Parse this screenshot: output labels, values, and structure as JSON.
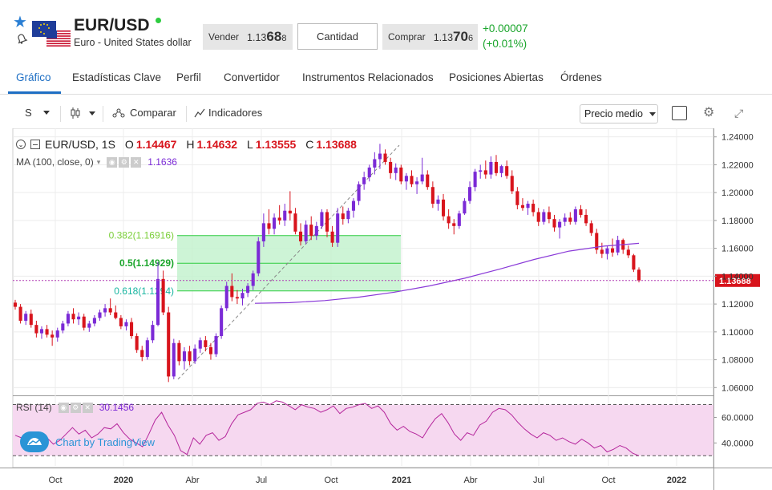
{
  "instrument": {
    "symbol": "EUR/USD",
    "description": "Euro - United States dollar"
  },
  "quote": {
    "sell_label": "Vender",
    "sell_prefix": "1.13",
    "sell_big": "68",
    "sell_small": "8",
    "quantity_label": "Cantidad",
    "buy_label": "Comprar",
    "buy_prefix": "1.13",
    "buy_big": "70",
    "buy_small": "6",
    "change_abs": "+0.00007",
    "change_pct": "(+0.01%)"
  },
  "tabs": [
    {
      "label": "Gráfico",
      "active": true
    },
    {
      "label": "Estadísticas Clave"
    },
    {
      "label": "Perfil"
    },
    {
      "label": "Convertidor"
    },
    {
      "label": "Instrumentos Relacionados"
    },
    {
      "label": "Posiciones Abiertas"
    },
    {
      "label": "Órdenes"
    }
  ],
  "toolbar": {
    "interval": "S",
    "compare": "Comparar",
    "indicators": "Indicadores",
    "price_type": "Precio medio"
  },
  "legend": {
    "symbol": "EUR/USD, 1S",
    "o_label": "O",
    "o_value": "1.14467",
    "h_label": "H",
    "h_value": "1.14632",
    "l_label": "L",
    "l_value": "1.13555",
    "c_label": "C",
    "c_value": "1.13688",
    "ma_label": "MA (100, close, 0)",
    "ma_value": "1.1636",
    "rsi_label": "RSI (14)",
    "rsi_value": "30.1456",
    "branding": "Chart by TradingView"
  },
  "colors": {
    "up": "#7b2ad6",
    "down": "#d8141c",
    "ma": "#8a3ad8",
    "rsi": "#b5269c",
    "fib_fill": "#c4f2cf",
    "fib_line": "#2ecc40",
    "rsi_fill": "#f6d8f0",
    "accent": "#1e6fc4",
    "positive": "#1aa52b"
  },
  "chart_data": {
    "type": "candlestick",
    "price_axis_ticks": [
      "1.24000",
      "1.22000",
      "1.20000",
      "1.18000",
      "1.16000",
      "1.14000",
      "1.12000",
      "1.10000",
      "1.08000",
      "1.06000"
    ],
    "last_price_label": "1.13688",
    "last_price": 1.13688,
    "time_axis_labels": [
      "Oct",
      "2020",
      "Abr",
      "Jul",
      "Oct",
      "2021",
      "Abr",
      "Jul",
      "Oct",
      "2022"
    ],
    "fibonacci": [
      {
        "label": "0.382(1.16916)",
        "price": 1.16916
      },
      {
        "label": "0.5(1.14929)",
        "price": 1.14929
      },
      {
        "label": "0.618(1.1294)",
        "price": 1.1294
      }
    ],
    "rsi_axis_ticks": [
      "60.0000",
      "40.0000"
    ],
    "rsi_bands": [
      70,
      30
    ],
    "candles": [
      [
        1.121,
        1.123,
        1.116,
        1.118
      ],
      [
        1.118,
        1.12,
        1.106,
        1.108
      ],
      [
        1.108,
        1.115,
        1.105,
        1.113
      ],
      [
        1.113,
        1.116,
        1.103,
        1.105
      ],
      [
        1.105,
        1.108,
        1.096,
        1.099
      ],
      [
        1.099,
        1.104,
        1.095,
        1.102
      ],
      [
        1.102,
        1.105,
        1.096,
        1.098
      ],
      [
        1.098,
        1.101,
        1.09,
        1.096
      ],
      [
        1.096,
        1.103,
        1.093,
        1.101
      ],
      [
        1.101,
        1.108,
        1.099,
        1.106
      ],
      [
        1.106,
        1.115,
        1.104,
        1.113
      ],
      [
        1.113,
        1.117,
        1.106,
        1.109
      ],
      [
        1.109,
        1.114,
        1.105,
        1.111
      ],
      [
        1.111,
        1.113,
        1.101,
        1.103
      ],
      [
        1.103,
        1.108,
        1.1,
        1.106
      ],
      [
        1.106,
        1.112,
        1.104,
        1.11
      ],
      [
        1.11,
        1.116,
        1.108,
        1.114
      ],
      [
        1.114,
        1.12,
        1.111,
        1.117
      ],
      [
        1.117,
        1.124,
        1.112,
        1.114
      ],
      [
        1.114,
        1.119,
        1.109,
        1.11
      ],
      [
        1.11,
        1.112,
        1.102,
        1.104
      ],
      [
        1.104,
        1.109,
        1.101,
        1.107
      ],
      [
        1.107,
        1.11,
        1.095,
        1.097
      ],
      [
        1.097,
        1.099,
        1.085,
        1.087
      ],
      [
        1.087,
        1.09,
        1.079,
        1.082
      ],
      [
        1.082,
        1.096,
        1.08,
        1.094
      ],
      [
        1.094,
        1.108,
        1.092,
        1.105
      ],
      [
        1.105,
        1.15,
        1.104,
        1.138
      ],
      [
        1.138,
        1.144,
        1.112,
        1.114
      ],
      [
        1.114,
        1.118,
        1.064,
        1.068
      ],
      [
        1.068,
        1.095,
        1.066,
        1.092
      ],
      [
        1.092,
        1.094,
        1.076,
        1.079
      ],
      [
        1.079,
        1.089,
        1.073,
        1.086
      ],
      [
        1.086,
        1.09,
        1.076,
        1.079
      ],
      [
        1.079,
        1.091,
        1.077,
        1.088
      ],
      [
        1.088,
        1.096,
        1.085,
        1.094
      ],
      [
        1.094,
        1.097,
        1.086,
        1.089
      ],
      [
        1.089,
        1.092,
        1.08,
        1.084
      ],
      [
        1.084,
        1.099,
        1.082,
        1.097
      ],
      [
        1.097,
        1.119,
        1.095,
        1.117
      ],
      [
        1.117,
        1.136,
        1.115,
        1.133
      ],
      [
        1.133,
        1.142,
        1.122,
        1.125
      ],
      [
        1.125,
        1.13,
        1.12,
        1.124
      ],
      [
        1.124,
        1.131,
        1.119,
        1.128
      ],
      [
        1.128,
        1.135,
        1.125,
        1.133
      ],
      [
        1.133,
        1.144,
        1.13,
        1.142
      ],
      [
        1.142,
        1.168,
        1.14,
        1.165
      ],
      [
        1.165,
        1.185,
        1.161,
        1.178
      ],
      [
        1.178,
        1.188,
        1.17,
        1.174
      ],
      [
        1.174,
        1.185,
        1.17,
        1.182
      ],
      [
        1.182,
        1.191,
        1.177,
        1.18
      ],
      [
        1.18,
        1.192,
        1.176,
        1.187
      ],
      [
        1.187,
        1.201,
        1.18,
        1.185
      ],
      [
        1.185,
        1.189,
        1.17,
        1.172
      ],
      [
        1.172,
        1.178,
        1.162,
        1.165
      ],
      [
        1.165,
        1.18,
        1.163,
        1.177
      ],
      [
        1.177,
        1.183,
        1.166,
        1.169
      ],
      [
        1.169,
        1.179,
        1.166,
        1.176
      ],
      [
        1.176,
        1.188,
        1.174,
        1.186
      ],
      [
        1.186,
        1.188,
        1.168,
        1.172
      ],
      [
        1.172,
        1.176,
        1.161,
        1.164
      ],
      [
        1.164,
        1.189,
        1.161,
        1.185
      ],
      [
        1.185,
        1.19,
        1.177,
        1.181
      ],
      [
        1.181,
        1.189,
        1.178,
        1.187
      ],
      [
        1.187,
        1.196,
        1.182,
        1.194
      ],
      [
        1.194,
        1.208,
        1.191,
        1.206
      ],
      [
        1.206,
        1.215,
        1.202,
        1.211
      ],
      [
        1.211,
        1.22,
        1.208,
        1.218
      ],
      [
        1.218,
        1.229,
        1.213,
        1.224
      ],
      [
        1.224,
        1.235,
        1.217,
        1.228
      ],
      [
        1.228,
        1.231,
        1.22,
        1.222
      ],
      [
        1.222,
        1.225,
        1.21,
        1.214
      ],
      [
        1.214,
        1.221,
        1.209,
        1.218
      ],
      [
        1.218,
        1.22,
        1.206,
        1.208
      ],
      [
        1.208,
        1.214,
        1.202,
        1.212
      ],
      [
        1.212,
        1.216,
        1.204,
        1.206
      ],
      [
        1.206,
        1.211,
        1.199,
        1.208
      ],
      [
        1.208,
        1.225,
        1.206,
        1.213
      ],
      [
        1.213,
        1.216,
        1.202,
        1.204
      ],
      [
        1.204,
        1.208,
        1.189,
        1.192
      ],
      [
        1.192,
        1.198,
        1.187,
        1.195
      ],
      [
        1.195,
        1.199,
        1.18,
        1.183
      ],
      [
        1.183,
        1.188,
        1.174,
        1.178
      ],
      [
        1.178,
        1.181,
        1.17,
        1.176
      ],
      [
        1.176,
        1.187,
        1.174,
        1.185
      ],
      [
        1.185,
        1.196,
        1.184,
        1.194
      ],
      [
        1.194,
        1.208,
        1.192,
        1.204
      ],
      [
        1.204,
        1.217,
        1.201,
        1.215
      ],
      [
        1.215,
        1.22,
        1.21,
        1.216
      ],
      [
        1.216,
        1.223,
        1.21,
        1.213
      ],
      [
        1.213,
        1.226,
        1.21,
        1.222
      ],
      [
        1.222,
        1.227,
        1.212,
        1.214
      ],
      [
        1.214,
        1.22,
        1.211,
        1.219
      ],
      [
        1.219,
        1.223,
        1.21,
        1.212
      ],
      [
        1.212,
        1.216,
        1.199,
        1.201
      ],
      [
        1.201,
        1.204,
        1.188,
        1.191
      ],
      [
        1.191,
        1.196,
        1.187,
        1.189
      ],
      [
        1.189,
        1.194,
        1.184,
        1.192
      ],
      [
        1.192,
        1.195,
        1.183,
        1.186
      ],
      [
        1.186,
        1.189,
        1.176,
        1.179
      ],
      [
        1.179,
        1.188,
        1.177,
        1.186
      ],
      [
        1.186,
        1.19,
        1.178,
        1.181
      ],
      [
        1.181,
        1.184,
        1.172,
        1.175
      ],
      [
        1.175,
        1.181,
        1.167,
        1.179
      ],
      [
        1.179,
        1.185,
        1.176,
        1.182
      ],
      [
        1.182,
        1.186,
        1.177,
        1.179
      ],
      [
        1.179,
        1.19,
        1.177,
        1.188
      ],
      [
        1.188,
        1.191,
        1.182,
        1.184
      ],
      [
        1.184,
        1.188,
        1.176,
        1.178
      ],
      [
        1.178,
        1.18,
        1.169,
        1.171
      ],
      [
        1.171,
        1.174,
        1.156,
        1.159
      ],
      [
        1.159,
        1.164,
        1.153,
        1.156
      ],
      [
        1.156,
        1.162,
        1.152,
        1.16
      ],
      [
        1.16,
        1.167,
        1.154,
        1.157
      ],
      [
        1.157,
        1.169,
        1.155,
        1.166
      ],
      [
        1.166,
        1.167,
        1.156,
        1.159
      ],
      [
        1.159,
        1.162,
        1.153,
        1.155
      ],
      [
        1.155,
        1.156,
        1.143,
        1.1447
      ],
      [
        1.14467,
        1.14632,
        1.13555,
        1.13688
      ]
    ],
    "ma_values": [
      1.1205,
      1.121,
      1.1225,
      1.125,
      1.1285,
      1.133,
      1.1385,
      1.145,
      1.152,
      1.158,
      1.1616,
      1.1636
    ],
    "rsi_values": [
      46,
      44,
      48,
      43,
      40,
      44,
      39,
      42,
      47,
      52,
      47,
      50,
      44,
      47,
      52,
      51,
      55,
      48,
      43,
      40,
      37,
      47,
      58,
      64,
      54,
      46,
      34,
      31,
      44,
      39,
      46,
      48,
      42,
      45,
      55,
      62,
      64,
      66,
      71,
      72,
      70,
      73,
      72,
      69,
      66,
      70,
      68,
      67,
      64,
      66,
      69,
      63,
      67,
      68,
      70,
      71,
      67,
      69,
      64,
      55,
      50,
      53,
      49,
      47,
      44,
      52,
      59,
      63,
      56,
      47,
      42,
      48,
      46,
      54,
      57,
      64,
      67,
      66,
      62,
      56,
      51,
      47,
      44,
      48,
      46,
      42,
      44,
      41,
      39,
      43,
      40,
      36,
      38,
      33,
      35,
      38,
      36,
      32,
      30
    ],
    "ylim": [
      1.055,
      1.245
    ],
    "rsi_ylim": [
      22,
      76
    ]
  }
}
